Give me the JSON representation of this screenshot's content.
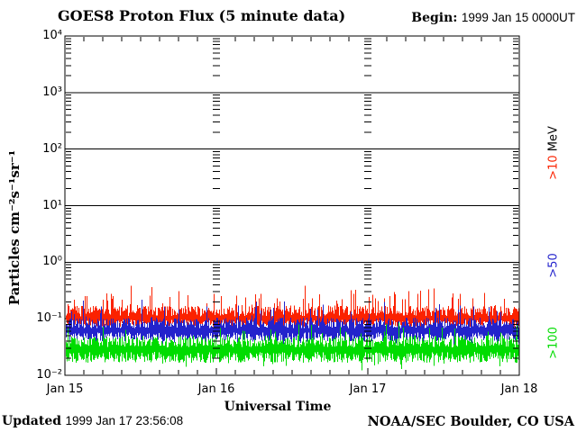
{
  "header": {
    "title": "GOES8 Proton Flux (5 minute data)",
    "begin_label": "Begin:",
    "begin_value": "1999 Jan 15 0000UT"
  },
  "footer": {
    "updated_label": "Updated",
    "updated_value": "1999 Jan 17 23:56:08",
    "credit": "NOAA/SEC Boulder, CO USA"
  },
  "chart_data": {
    "type": "line",
    "title": "GOES8 Proton Flux (5 minute data)",
    "xlabel": "Universal Time",
    "ylabel": "Particles cm⁻²s⁻¹sr⁻¹",
    "x_tick_labels": [
      "Jan 15",
      "Jan 16",
      "Jan 17",
      "Jan 18"
    ],
    "y_tick_labels": [
      "10⁴",
      "10³",
      "10²",
      "10¹",
      "10⁰",
      "10⁻¹",
      "10⁻²"
    ],
    "y_log_range": [
      -2,
      4
    ],
    "x_range_days": 3,
    "x_minor_ticks_per_day": 8,
    "x_start": "1999 Jan 15 0000 UT",
    "x_end": "1999 Jan 18 0000 UT",
    "grid": {
      "horizontal": "solid black line at each decade",
      "vertical": "columns of log minor-tick dashes at day boundaries"
    },
    "legend_unit": "MeV",
    "axis_color": "#000000",
    "background_color": "#ffffff",
    "series": [
      {
        "name": ">10 MeV",
        "label": ">10",
        "color": "#fb2200",
        "typical_flux": 0.1,
        "peak_flux": 0.45,
        "min_flux": 0.065,
        "baseline_log10": -0.99,
        "low_spread": 0.15,
        "high_spread": 0.22,
        "spike_prob": 0.2,
        "spike_amp": 0.42,
        "dip_prob": 0.05,
        "dip_amp": 0.1,
        "seed": 7
      },
      {
        "name": ">50 MeV",
        "label": ">50",
        "color": "#2323cc",
        "typical_flux": 0.06,
        "peak_flux": 0.2,
        "min_flux": 0.03,
        "baseline_log10": -1.2,
        "low_spread": 0.2,
        "high_spread": 0.22,
        "spike_prob": 0.13,
        "spike_amp": 0.38,
        "dip_prob": 0.08,
        "dip_amp": 0.18,
        "seed": 13
      },
      {
        "name": ">100 MeV",
        "label": ">100",
        "color": "#00dc00",
        "typical_flux": 0.028,
        "peak_flux": 0.09,
        "min_flux": 0.013,
        "baseline_log10": -1.54,
        "low_spread": 0.24,
        "high_spread": 0.24,
        "spike_prob": 0.1,
        "spike_amp": 0.32,
        "dip_prob": 0.08,
        "dip_amp": 0.15,
        "seed": 21
      }
    ]
  }
}
